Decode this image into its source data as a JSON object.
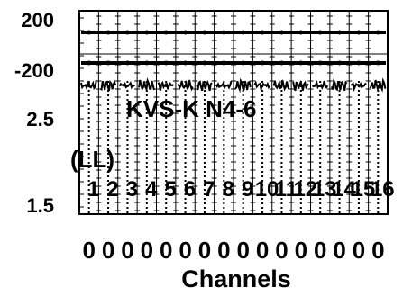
{
  "chart_data": {
    "type": "line",
    "title": "",
    "xlabel": "Channels",
    "overlay_text": "KVS-K N4-6",
    "unit_label": "(LL)",
    "y_ticks": [
      {
        "label": "200"
      },
      {
        "label": "-200"
      },
      {
        "label": "2.5"
      },
      {
        "label": "1.5"
      }
    ],
    "x_ticks_top": [
      "1",
      "2",
      "3",
      "4",
      "5",
      "6",
      "7",
      "8",
      "9",
      "10",
      "11",
      "12",
      "13",
      "14",
      "15",
      "16"
    ],
    "x_ticks_bottom": [
      "0",
      "0",
      "0",
      "0",
      "0",
      "0",
      "0",
      "0",
      "0",
      "0",
      "0",
      "0",
      "0",
      "0",
      "0",
      "0"
    ],
    "channels": 16,
    "series": [
      {
        "values": [
          200,
          200,
          200,
          200,
          200,
          200,
          200,
          200,
          200,
          200,
          200,
          200,
          200,
          200,
          200,
          200
        ]
      },
      {
        "values": [
          -200,
          -200,
          -200,
          -200,
          -200,
          -200,
          -200,
          -200,
          -200,
          -200,
          -200,
          -200,
          -200,
          -200,
          -200,
          -200
        ]
      }
    ],
    "grid": true,
    "colors": {
      "ink": "#000000",
      "background": "#ffffff"
    }
  }
}
